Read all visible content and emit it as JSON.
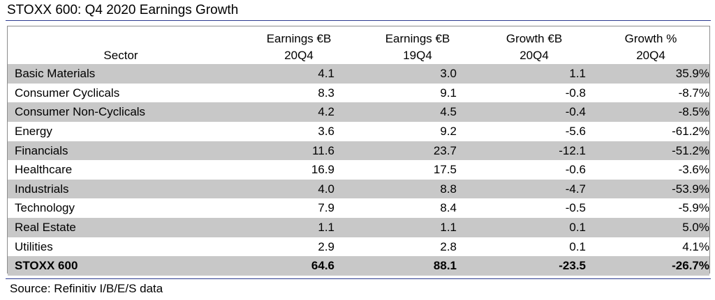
{
  "title": "STOXX 600: Q4 2020 Earnings Growth",
  "source": "Source: Refinitiv I/B/E/S data",
  "chart_data": {
    "type": "table",
    "title": "STOXX 600: Q4 2020 Earnings Growth",
    "columns": [
      {
        "line1": "",
        "line2": "Sector"
      },
      {
        "line1": "Earnings €B",
        "line2": "20Q4"
      },
      {
        "line1": "Earnings €B",
        "line2": "19Q4"
      },
      {
        "line1": "Growth €B",
        "line2": "20Q4"
      },
      {
        "line1": "Growth %",
        "line2": "20Q4"
      }
    ],
    "rows": [
      [
        "Basic Materials",
        "4.1",
        "3.0",
        "1.1",
        "35.9%"
      ],
      [
        "Consumer Cyclicals",
        "8.3",
        "9.1",
        "-0.8",
        "-8.7%"
      ],
      [
        "Consumer Non-Cyclicals",
        "4.2",
        "4.5",
        "-0.4",
        "-8.5%"
      ],
      [
        "Energy",
        "3.6",
        "9.2",
        "-5.6",
        "-61.2%"
      ],
      [
        "Financials",
        "11.6",
        "23.7",
        "-12.1",
        "-51.2%"
      ],
      [
        "Healthcare",
        "16.9",
        "17.5",
        "-0.6",
        "-3.6%"
      ],
      [
        "Industrials",
        "4.0",
        "8.8",
        "-4.7",
        "-53.9%"
      ],
      [
        "Technology",
        "7.9",
        "8.4",
        "-0.5",
        "-5.9%"
      ],
      [
        "Real Estate",
        "1.1",
        "1.1",
        "0.1",
        "5.0%"
      ],
      [
        "Utilities",
        "2.9",
        "2.8",
        "0.1",
        "4.1%"
      ]
    ],
    "total": [
      "STOXX 600",
      "64.6",
      "88.1",
      "-23.5",
      "-26.7%"
    ]
  }
}
